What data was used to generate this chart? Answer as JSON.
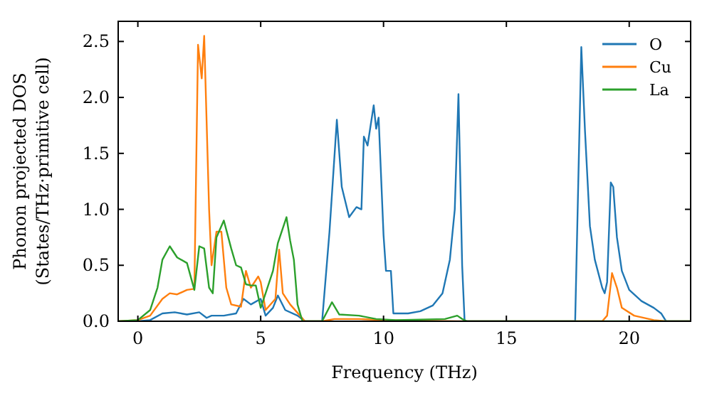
{
  "chart_data": {
    "type": "line",
    "xlabel": "Frequency (THz)",
    "ylabel": "Phonon projected DOS\n(States/THz·primitive cell)",
    "xlim": [
      -0.8,
      22.5
    ],
    "ylim": [
      0,
      2.68
    ],
    "xticks": [
      0,
      5,
      10,
      15,
      20
    ],
    "yticks": [
      {
        "value": 0,
        "label": "0.0"
      },
      {
        "value": 0.5,
        "label": "0.5"
      },
      {
        "value": 1,
        "label": "1.0"
      },
      {
        "value": 1.5,
        "label": "1.5"
      },
      {
        "value": 2,
        "label": "2.0"
      },
      {
        "value": 2.5,
        "label": "2.5"
      }
    ],
    "legend": "top right",
    "grid": false,
    "series": [
      {
        "name": "O",
        "color": "#1f77b4",
        "x": [
          -0.8,
          0,
          0.5,
          1,
          1.5,
          2,
          2.5,
          2.8,
          3,
          3.5,
          4,
          4.3,
          4.6,
          5,
          5.2,
          5.5,
          5.7,
          6,
          6.5,
          6.8,
          7.5,
          7.8,
          8.1,
          8.3,
          8.6,
          8.9,
          9.1,
          9.2,
          9.35,
          9.6,
          9.7,
          9.8,
          10,
          10.1,
          10.3,
          10.4,
          11,
          11.5,
          12,
          12.4,
          12.7,
          12.9,
          13.05,
          13.2,
          13.3,
          17.8,
          18.05,
          18.2,
          18.4,
          18.6,
          18.9,
          19,
          19.1,
          19.25,
          19.35,
          19.5,
          19.7,
          20,
          20.5,
          21,
          21.3,
          21.5,
          22.5
        ],
        "values": [
          0,
          0,
          0.01,
          0.07,
          0.08,
          0.06,
          0.08,
          0.03,
          0.05,
          0.05,
          0.07,
          0.2,
          0.15,
          0.2,
          0.05,
          0.12,
          0.23,
          0.1,
          0.05,
          0,
          0,
          0.8,
          1.8,
          1.2,
          0.93,
          1.02,
          1,
          1.65,
          1.57,
          1.93,
          1.72,
          1.82,
          0.77,
          0.45,
          0.45,
          0.07,
          0.07,
          0.09,
          0.14,
          0.25,
          0.55,
          1,
          2.03,
          0.5,
          0,
          0,
          2.45,
          1.7,
          0.85,
          0.55,
          0.3,
          0.25,
          0.35,
          1.24,
          1.2,
          0.75,
          0.45,
          0.28,
          0.18,
          0.12,
          0.07,
          0,
          0
        ]
      },
      {
        "name": "Cu",
        "color": "#ff7f0e",
        "x": [
          -0.8,
          0,
          0.5,
          1,
          1.3,
          1.6,
          2,
          2.3,
          2.45,
          2.6,
          2.7,
          2.9,
          3,
          3.2,
          3.4,
          3.6,
          3.8,
          4.2,
          4.4,
          4.6,
          4.9,
          5,
          5.2,
          5.6,
          5.75,
          5.9,
          6.2,
          6.6,
          6.8,
          7.5,
          8,
          9,
          10,
          13,
          18.9,
          19.1,
          19.3,
          19.5,
          19.7,
          20.2,
          21,
          21.5,
          22.5
        ],
        "values": [
          0,
          0.01,
          0.05,
          0.2,
          0.25,
          0.24,
          0.28,
          0.29,
          2.47,
          2.17,
          2.55,
          1,
          0.5,
          0.8,
          0.8,
          0.3,
          0.15,
          0.13,
          0.45,
          0.3,
          0.4,
          0.35,
          0.1,
          0.2,
          0.64,
          0.25,
          0.15,
          0.05,
          0,
          0,
          0.02,
          0.02,
          0.01,
          0,
          0,
          0.05,
          0.43,
          0.3,
          0.12,
          0.05,
          0.01,
          0,
          0
        ]
      },
      {
        "name": "La",
        "color": "#2ca02c",
        "x": [
          -0.8,
          0,
          0.5,
          0.8,
          1,
          1.3,
          1.6,
          2,
          2.3,
          2.5,
          2.7,
          2.9,
          3.05,
          3.2,
          3.5,
          3.8,
          4,
          4.2,
          4.4,
          4.6,
          4.8,
          5,
          5.2,
          5.5,
          5.7,
          6.05,
          6.2,
          6.35,
          6.5,
          6.7,
          7.5,
          7.9,
          8.2,
          9,
          9.7,
          10.5,
          12.5,
          13,
          13.2,
          13.4,
          22.5
        ],
        "values": [
          0,
          0.01,
          0.1,
          0.3,
          0.55,
          0.67,
          0.57,
          0.52,
          0.28,
          0.67,
          0.65,
          0.3,
          0.25,
          0.75,
          0.9,
          0.65,
          0.5,
          0.48,
          0.33,
          0.32,
          0.32,
          0.12,
          0.25,
          0.45,
          0.7,
          0.93,
          0.72,
          0.55,
          0.15,
          0,
          0,
          0.17,
          0.06,
          0.05,
          0.02,
          0.01,
          0.02,
          0.05,
          0.02,
          0,
          0
        ]
      }
    ]
  }
}
